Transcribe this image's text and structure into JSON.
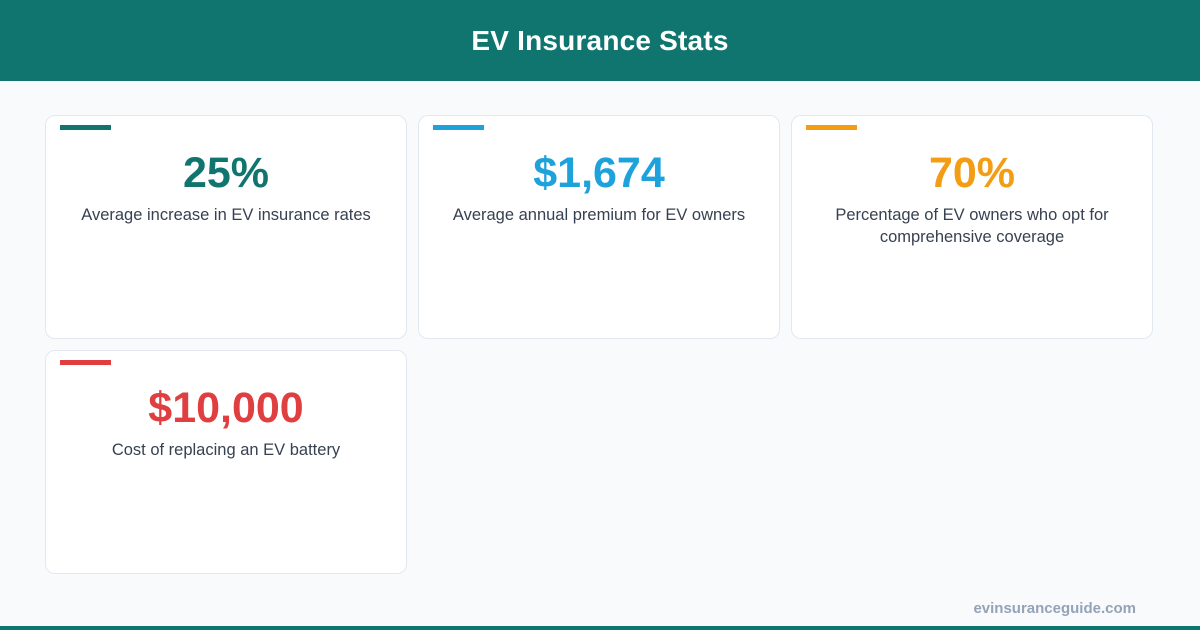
{
  "header": {
    "title": "EV Insurance Stats"
  },
  "stats": [
    {
      "value": "25%",
      "label": "Average increase in EV insurance rates",
      "color": "#10756e"
    },
    {
      "value": "$1,674",
      "label": "Average annual premium for EV owners",
      "color": "#1ea2dc"
    },
    {
      "value": "70%",
      "label": "Percentage of EV owners who opt for comprehensive coverage",
      "color": "#f29d13"
    },
    {
      "value": "$10,000",
      "label": "Cost of replacing an EV battery",
      "color": "#e03f41"
    }
  ],
  "footer": {
    "site": "evinsuranceguide.com"
  }
}
